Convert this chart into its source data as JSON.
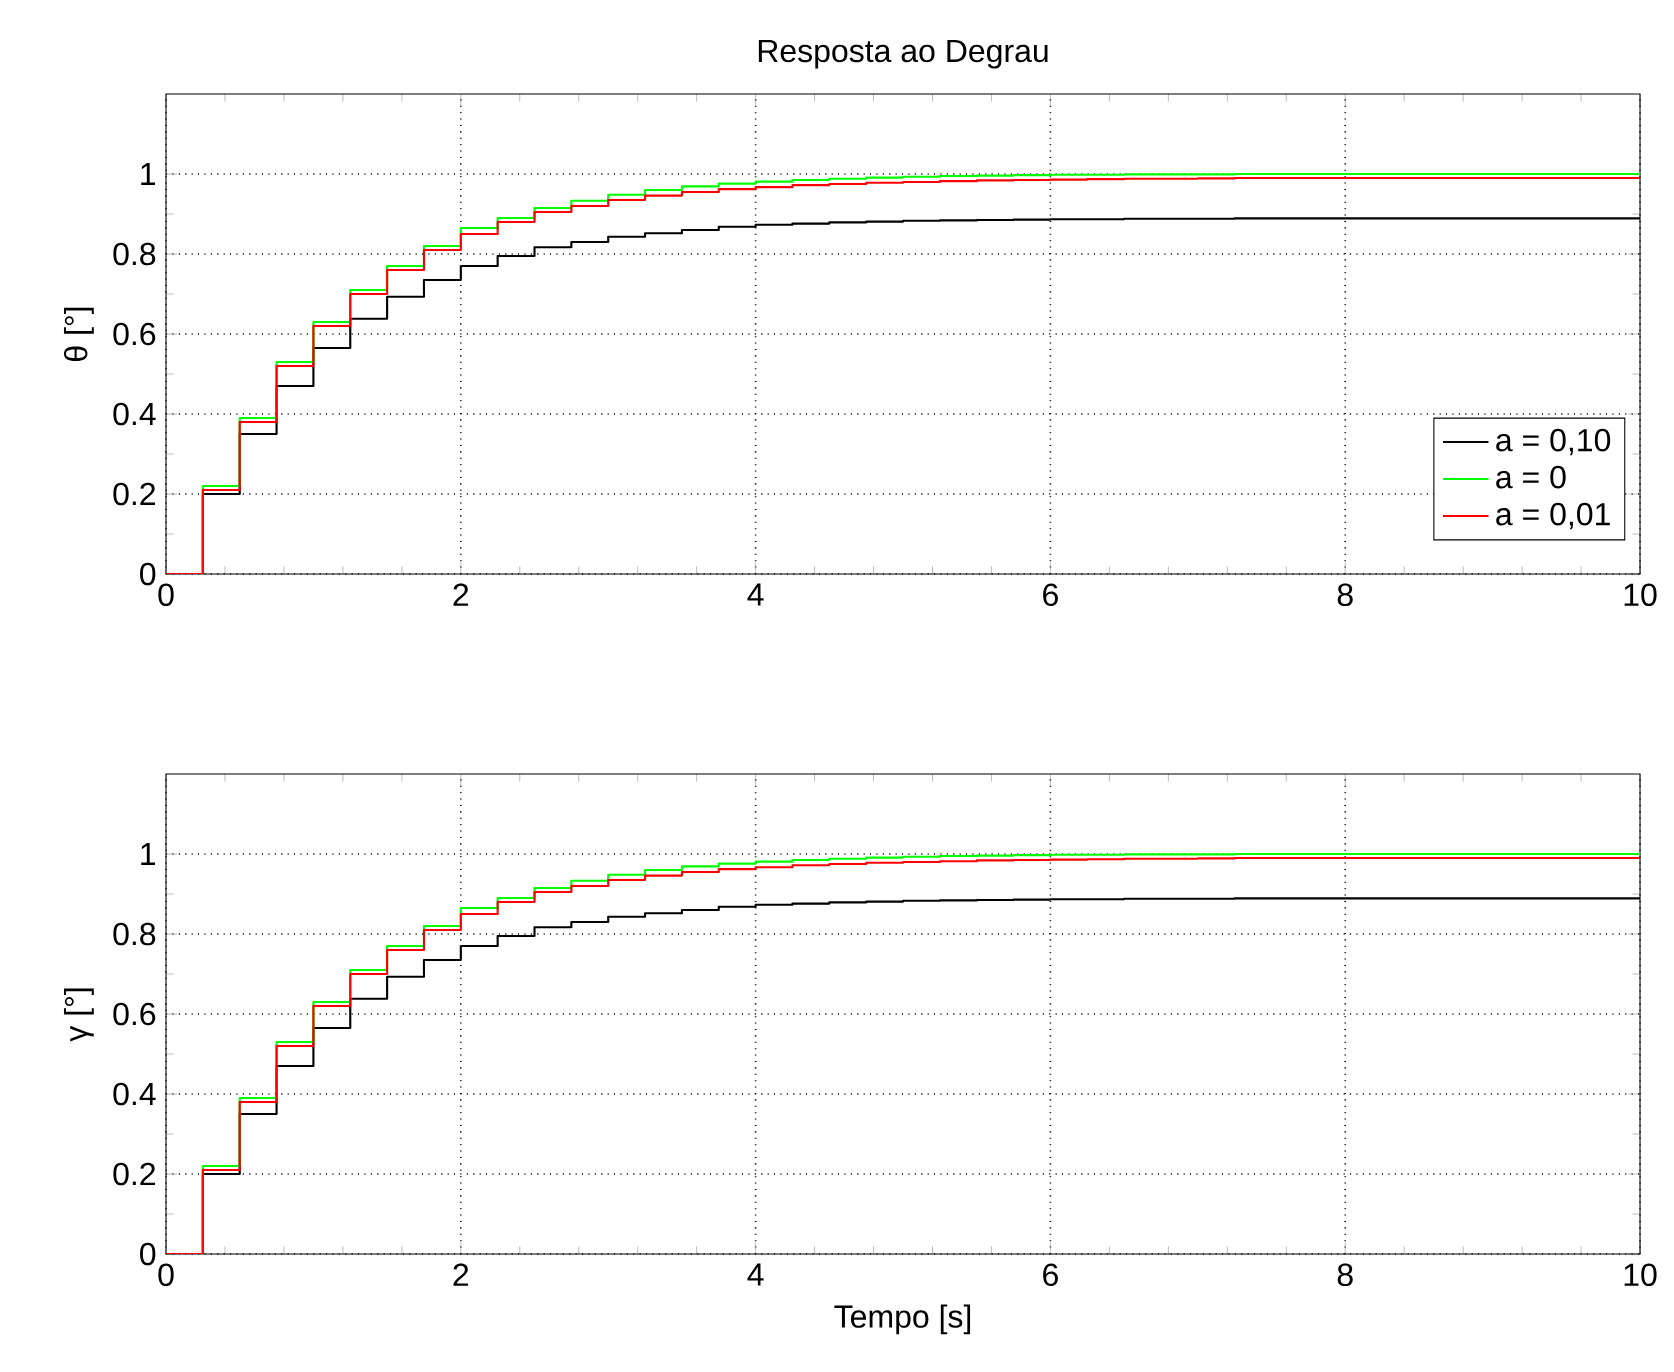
{
  "chart_data": [
    {
      "type": "step",
      "title": "Resposta ao Degrau",
      "ylabel": "θ [°]",
      "x": [
        0,
        0.25,
        0.5,
        0.75,
        1,
        1.25,
        1.5,
        1.75,
        2,
        2.25,
        2.5,
        2.75,
        3,
        3.25,
        3.5,
        3.75,
        4,
        4.25,
        4.5,
        4.75,
        5,
        5.25,
        5.5,
        5.75,
        6,
        6.25,
        6.5,
        6.75,
        7,
        7.25,
        7.5,
        7.75,
        8,
        8.25,
        8.5,
        8.75,
        9,
        9.25,
        9.5,
        9.75,
        10
      ],
      "series": [
        {
          "name": "a = 0,10",
          "color": "#000000",
          "values": [
            0,
            0.2,
            0.35,
            0.47,
            0.565,
            0.638,
            0.693,
            0.735,
            0.77,
            0.795,
            0.817,
            0.83,
            0.843,
            0.852,
            0.86,
            0.868,
            0.873,
            0.876,
            0.879,
            0.881,
            0.883,
            0.884,
            0.885,
            0.886,
            0.887,
            0.887,
            0.888,
            0.888,
            0.888,
            0.889,
            0.889,
            0.889,
            0.889,
            0.889,
            0.889,
            0.889,
            0.889,
            0.889,
            0.889,
            0.889,
            0.889
          ]
        },
        {
          "name": "a = 0",
          "color": "#00ff00",
          "values": [
            0,
            0.22,
            0.39,
            0.53,
            0.63,
            0.71,
            0.77,
            0.82,
            0.865,
            0.89,
            0.915,
            0.933,
            0.948,
            0.96,
            0.969,
            0.976,
            0.981,
            0.985,
            0.988,
            0.991,
            0.993,
            0.995,
            0.996,
            0.997,
            0.998,
            0.998,
            0.999,
            0.999,
            0.999,
            1,
            1,
            1,
            1,
            1,
            1,
            1,
            1,
            1,
            1,
            1,
            1
          ]
        },
        {
          "name": "a = 0,01",
          "color": "#ff0000",
          "values": [
            0,
            0.21,
            0.38,
            0.52,
            0.62,
            0.7,
            0.76,
            0.81,
            0.85,
            0.88,
            0.905,
            0.92,
            0.935,
            0.946,
            0.955,
            0.962,
            0.967,
            0.972,
            0.975,
            0.978,
            0.98,
            0.982,
            0.984,
            0.985,
            0.986,
            0.987,
            0.988,
            0.988,
            0.989,
            0.99,
            0.99,
            0.99,
            0.99,
            0.99,
            0.99,
            0.99,
            0.99,
            0.99,
            0.99,
            0.99,
            0.99
          ]
        }
      ],
      "xlim": [
        0,
        10
      ],
      "ylim": [
        0,
        1.2
      ],
      "xticks": [
        0,
        2,
        4,
        6,
        8,
        10
      ],
      "yticks": [
        0,
        0.2,
        0.4,
        0.6,
        0.8,
        1
      ],
      "grid": true,
      "legend": "bottom right"
    },
    {
      "type": "step",
      "ylabel": "γ [°]",
      "xlabel": "Tempo [s]",
      "x": [
        0,
        0.25,
        0.5,
        0.75,
        1,
        1.25,
        1.5,
        1.75,
        2,
        2.25,
        2.5,
        2.75,
        3,
        3.25,
        3.5,
        3.75,
        4,
        4.25,
        4.5,
        4.75,
        5,
        5.25,
        5.5,
        5.75,
        6,
        6.25,
        6.5,
        6.75,
        7,
        7.25,
        7.5,
        7.75,
        8,
        8.25,
        8.5,
        8.75,
        9,
        9.25,
        9.5,
        9.75,
        10
      ],
      "series": [
        {
          "color": "#000000",
          "values": [
            0,
            0.2,
            0.35,
            0.47,
            0.565,
            0.638,
            0.693,
            0.735,
            0.77,
            0.795,
            0.817,
            0.83,
            0.843,
            0.852,
            0.86,
            0.868,
            0.873,
            0.876,
            0.879,
            0.881,
            0.883,
            0.884,
            0.885,
            0.886,
            0.887,
            0.887,
            0.888,
            0.888,
            0.888,
            0.889,
            0.889,
            0.889,
            0.889,
            0.889,
            0.889,
            0.889,
            0.889,
            0.889,
            0.889,
            0.889,
            0.889
          ]
        },
        {
          "color": "#00ff00",
          "values": [
            0,
            0.22,
            0.39,
            0.53,
            0.63,
            0.71,
            0.77,
            0.82,
            0.865,
            0.89,
            0.915,
            0.933,
            0.948,
            0.96,
            0.969,
            0.976,
            0.981,
            0.985,
            0.988,
            0.991,
            0.993,
            0.995,
            0.996,
            0.997,
            0.998,
            0.998,
            0.999,
            0.999,
            0.999,
            1,
            1,
            1,
            1,
            1,
            1,
            1,
            1,
            1,
            1,
            1,
            1
          ]
        },
        {
          "color": "#ff0000",
          "values": [
            0,
            0.21,
            0.38,
            0.52,
            0.62,
            0.7,
            0.76,
            0.81,
            0.85,
            0.88,
            0.905,
            0.92,
            0.935,
            0.946,
            0.955,
            0.962,
            0.967,
            0.972,
            0.975,
            0.978,
            0.98,
            0.982,
            0.984,
            0.985,
            0.986,
            0.987,
            0.988,
            0.988,
            0.989,
            0.99,
            0.99,
            0.99,
            0.99,
            0.99,
            0.99,
            0.99,
            0.99,
            0.99,
            0.99,
            0.99,
            0.99
          ]
        }
      ],
      "xlim": [
        0,
        10
      ],
      "ylim": [
        0,
        1.2
      ],
      "xticks": [
        0,
        2,
        4,
        6,
        8,
        10
      ],
      "yticks": [
        0,
        0.2,
        0.4,
        0.6,
        0.8,
        1
      ],
      "grid": true
    }
  ]
}
